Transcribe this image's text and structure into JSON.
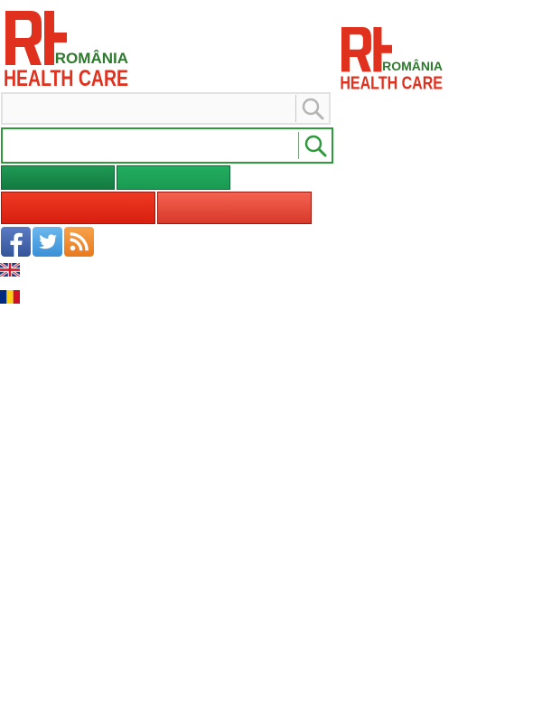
{
  "brand": {
    "logo_top_text": "ROMÂNIA",
    "logo_bottom_text": "HEALTH CARE",
    "colors": {
      "red": "#e0301e",
      "green": "#2d7a2d"
    }
  },
  "search_primary": {
    "value": "",
    "placeholder": "",
    "button_icon": "search-icon"
  },
  "search_secondary": {
    "value": "",
    "placeholder": "",
    "button_icon": "search-icon"
  },
  "buttons": {
    "green_left": "",
    "green_right": "",
    "red_left": "",
    "red_right": ""
  },
  "social": [
    {
      "icon": "facebook-icon",
      "color": "#3b5998"
    },
    {
      "icon": "twitter-icon",
      "color": "#4a9fe0"
    },
    {
      "icon": "rss-icon",
      "color": "#f0882a"
    }
  ],
  "languages": [
    {
      "icon": "uk-flag-icon"
    },
    {
      "icon": "romania-flag-icon"
    }
  ]
}
